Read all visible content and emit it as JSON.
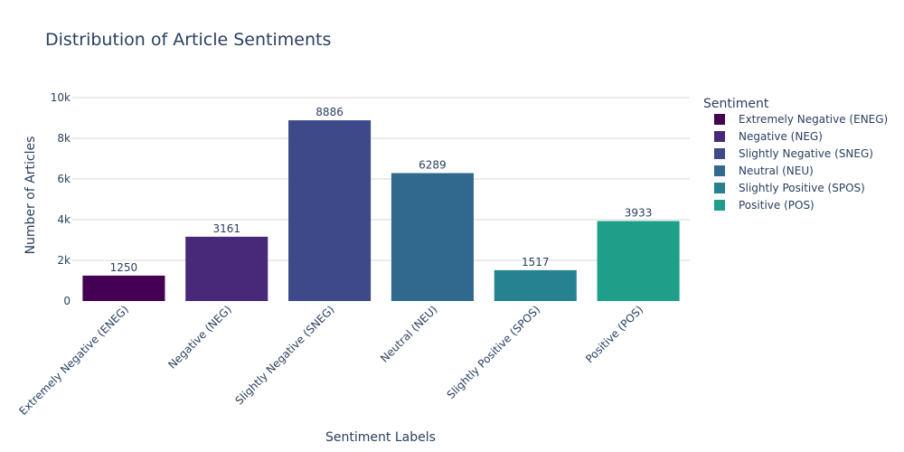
{
  "chart_data": {
    "type": "bar",
    "title": "Distribution of Article Sentiments",
    "xlabel": "Sentiment Labels",
    "ylabel": "Number of Articles",
    "ylim": [
      0,
      10000
    ],
    "yticks": [
      0,
      2000,
      4000,
      6000,
      8000,
      10000
    ],
    "ytick_labels": [
      "0",
      "2k",
      "4k",
      "6k",
      "8k",
      "10k"
    ],
    "categories": [
      "Extremely Negative (ENEG)",
      "Negative (NEG)",
      "Slightly Negative (SNEG)",
      "Neutral (NEU)",
      "Slightly Positive (SPOS)",
      "Positive (POS)"
    ],
    "values": [
      1250,
      3161,
      8886,
      6289,
      1517,
      3933
    ],
    "colors": [
      "#440154",
      "#482878",
      "#3e4989",
      "#31688e",
      "#26828e",
      "#1f9e89"
    ],
    "grid": true,
    "legend": {
      "title": "Sentiment",
      "placement": "right"
    }
  }
}
